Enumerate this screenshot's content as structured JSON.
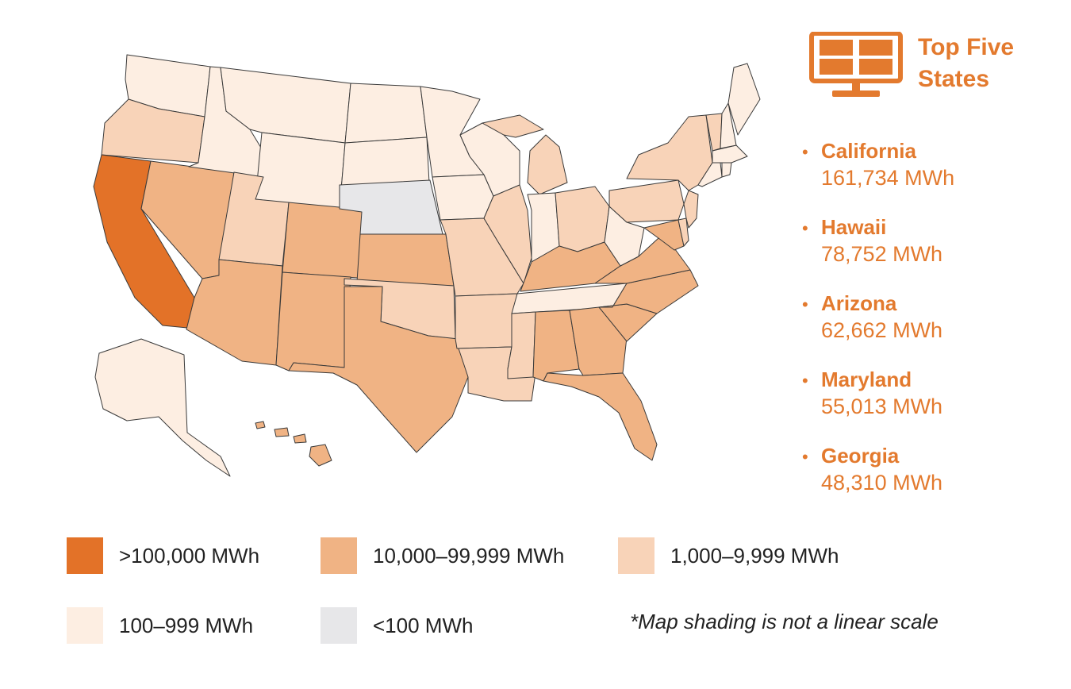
{
  "title": "Top Five States",
  "colors": {
    "accent": "#e37a2e",
    "over_100k": "#e37228",
    "10k_to_99k": "#f0b384",
    "1k_to_9k": "#f8d3b8",
    "100_to_999": "#fdeee2",
    "under_100": "#e7e7e9"
  },
  "top_states": [
    {
      "name": "California",
      "value": "161,734 MWh"
    },
    {
      "name": "Hawaii",
      "value": "78,752 MWh"
    },
    {
      "name": "Arizona",
      "value": "62,662 MWh"
    },
    {
      "name": "Maryland",
      "value": "55,013 MWh"
    },
    {
      "name": "Georgia",
      "value": "48,310 MWh"
    }
  ],
  "legend": [
    {
      "label": ">100,000 MWh",
      "color": "#e37228"
    },
    {
      "label": "10,000–99,999 MWh",
      "color": "#f0b384"
    },
    {
      "label": "1,000–9,999 MWh",
      "color": "#f8d3b8"
    },
    {
      "label": "100–999 MWh",
      "color": "#fdeee2"
    },
    {
      "label": "<100 MWh",
      "color": "#e7e7e9"
    }
  ],
  "note": "*Map shading is not a linear scale",
  "state_classes": {
    "WA": "100_to_999",
    "OR": "1k_to_9k",
    "CA": "over_100k",
    "NV": "10k_to_99k",
    "ID": "100_to_999",
    "MT": "100_to_999",
    "WY": "100_to_999",
    "UT": "1k_to_9k",
    "AZ": "10k_to_99k",
    "CO": "10k_to_99k",
    "NM": "10k_to_99k",
    "ND": "100_to_999",
    "SD": "100_to_999",
    "NE": "under_100",
    "KS": "10k_to_99k",
    "OK": "1k_to_9k",
    "TX": "10k_to_99k",
    "MN": "100_to_999",
    "IA": "100_to_999",
    "MO": "1k_to_9k",
    "AR": "1k_to_9k",
    "LA": "1k_to_9k",
    "WI": "100_to_999",
    "IL": "1k_to_9k",
    "MI": "1k_to_9k",
    "IN": "100_to_999",
    "OH": "1k_to_9k",
    "KY": "10k_to_99k",
    "TN": "100_to_999",
    "MS": "1k_to_9k",
    "AL": "10k_to_99k",
    "GA": "10k_to_99k",
    "FL": "10k_to_99k",
    "SC": "10k_to_99k",
    "NC": "10k_to_99k",
    "VA": "10k_to_99k",
    "WV": "100_to_999",
    "PA": "1k_to_9k",
    "NY": "1k_to_9k",
    "MD": "10k_to_99k",
    "DE": "1k_to_9k",
    "NJ": "1k_to_9k",
    "CT": "100_to_999",
    "RI": "100_to_999",
    "MA": "100_to_999",
    "VT": "1k_to_9k",
    "NH": "100_to_999",
    "ME": "100_to_999",
    "AK": "100_to_999",
    "HI": "10k_to_99k"
  }
}
